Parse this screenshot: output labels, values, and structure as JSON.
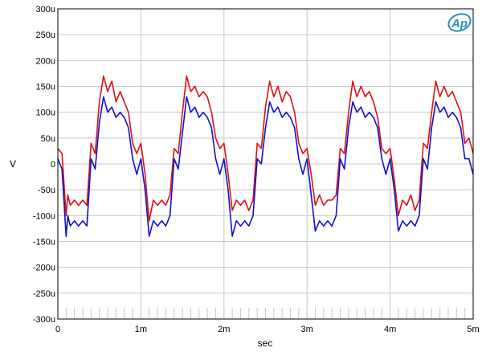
{
  "chart_data": {
    "type": "line",
    "title": "",
    "xlabel": "sec",
    "ylabel": "V",
    "x_unit": "seconds",
    "y_unit": "volts",
    "xlim": [
      0,
      0.005
    ],
    "ylim": [
      -0.0003,
      0.0003
    ],
    "grid": true,
    "x_ticks": [
      0,
      0.001,
      0.002,
      0.003,
      0.004,
      0.005
    ],
    "x_tick_labels": [
      "0",
      "1m",
      "2m",
      "3m",
      "4m",
      "5m"
    ],
    "y_ticks": [
      0.0003,
      0.00025,
      0.0002,
      0.00015,
      0.0001,
      5e-05,
      0,
      -5e-05,
      -0.0001,
      -0.00015,
      -0.0002,
      -0.00025,
      -0.0003
    ],
    "y_tick_labels": [
      "300u",
      "250u",
      "200u",
      "150u",
      "100u",
      "50u",
      "0",
      "-50u",
      "-100u",
      "-150u",
      "-200u",
      "-250u",
      "-300u"
    ],
    "series": [
      {
        "color": "#dd1111",
        "x": [
          0,
          5e-05,
          0.0001,
          0.00012,
          0.00015,
          0.0002,
          0.00025,
          0.0003,
          0.00035,
          0.0004,
          0.00045,
          0.0005,
          0.00055,
          0.0006,
          0.00065,
          0.0007,
          0.00075,
          0.0008,
          0.00085,
          0.0009,
          0.00095,
          0.001,
          0.00105,
          0.0011,
          0.00115,
          0.0012,
          0.00125,
          0.0013,
          0.00135,
          0.0014,
          0.00145,
          0.0015,
          0.00155,
          0.0016,
          0.00165,
          0.0017,
          0.00175,
          0.0018,
          0.00185,
          0.0019,
          0.00195,
          0.002,
          0.00205,
          0.0021,
          0.00215,
          0.0022,
          0.00225,
          0.0023,
          0.00235,
          0.0024,
          0.00245,
          0.0025,
          0.00255,
          0.0026,
          0.00265,
          0.0027,
          0.00275,
          0.0028,
          0.00285,
          0.0029,
          0.00295,
          0.003,
          0.00305,
          0.0031,
          0.00315,
          0.0032,
          0.00325,
          0.0033,
          0.00335,
          0.0034,
          0.00345,
          0.0035,
          0.00355,
          0.0036,
          0.00365,
          0.0037,
          0.00375,
          0.0038,
          0.00385,
          0.0039,
          0.00395,
          0.004,
          0.00405,
          0.0041,
          0.00415,
          0.0042,
          0.00425,
          0.0043,
          0.00435,
          0.0044,
          0.00445,
          0.0045,
          0.00455,
          0.0046,
          0.00465,
          0.0047,
          0.00475,
          0.0048,
          0.00485,
          0.0049,
          0.00495,
          0.005
        ],
        "y": [
          3e-05,
          2e-05,
          -0.0001,
          -6e-05,
          -8e-05,
          -7e-05,
          -8e-05,
          -7e-05,
          -8e-05,
          4e-05,
          2e-05,
          0.00012,
          0.00017,
          0.00014,
          0.00016,
          0.00012,
          0.00014,
          0.00012,
          0.0001,
          4e-05,
          2e-05,
          4e-05,
          -2e-05,
          -0.00011,
          -7e-05,
          -8e-05,
          -7e-05,
          -8e-05,
          -6e-05,
          3e-05,
          2e-05,
          0.0001,
          0.00017,
          0.00014,
          0.00015,
          0.00013,
          0.00014,
          0.00013,
          0.0001,
          5e-05,
          3e-05,
          4e-05,
          -2e-05,
          -9e-05,
          -7e-05,
          -8e-05,
          -7e-05,
          -9e-05,
          -7e-05,
          4e-05,
          3e-05,
          0.00011,
          0.00016,
          0.00013,
          0.00015,
          0.00012,
          0.00014,
          0.00013,
          0.0001,
          4e-05,
          2e-05,
          3e-05,
          -2e-05,
          -8e-05,
          -6e-05,
          -8e-05,
          -7e-05,
          -7e-05,
          -6e-05,
          3e-05,
          2e-05,
          0.0001,
          0.00016,
          0.00013,
          0.00015,
          0.00013,
          0.00014,
          0.00012,
          9e-05,
          3e-05,
          2e-05,
          3e-05,
          -3e-05,
          -0.0001,
          -7e-05,
          -8e-05,
          -6e-05,
          -9e-05,
          -7e-05,
          4e-05,
          3e-05,
          0.0001,
          0.00016,
          0.00013,
          0.00015,
          0.00013,
          0.00014,
          0.00012,
          0.0001,
          4e-05,
          5e-05,
          2e-05
        ]
      },
      {
        "color": "#1111cc",
        "x": [
          0,
          5e-05,
          0.0001,
          0.00012,
          0.00015,
          0.0002,
          0.00025,
          0.0003,
          0.00035,
          0.0004,
          0.00045,
          0.0005,
          0.00055,
          0.0006,
          0.00065,
          0.0007,
          0.00075,
          0.0008,
          0.00085,
          0.0009,
          0.00095,
          0.001,
          0.00105,
          0.0011,
          0.00115,
          0.0012,
          0.00125,
          0.0013,
          0.00135,
          0.0014,
          0.00145,
          0.0015,
          0.00155,
          0.0016,
          0.00165,
          0.0017,
          0.00175,
          0.0018,
          0.00185,
          0.0019,
          0.00195,
          0.002,
          0.00205,
          0.0021,
          0.00215,
          0.0022,
          0.00225,
          0.0023,
          0.00235,
          0.0024,
          0.00245,
          0.0025,
          0.00255,
          0.0026,
          0.00265,
          0.0027,
          0.00275,
          0.0028,
          0.00285,
          0.0029,
          0.00295,
          0.003,
          0.00305,
          0.0031,
          0.00315,
          0.0032,
          0.00325,
          0.0033,
          0.00335,
          0.0034,
          0.00345,
          0.0035,
          0.00355,
          0.0036,
          0.00365,
          0.0037,
          0.00375,
          0.0038,
          0.00385,
          0.0039,
          0.00395,
          0.004,
          0.00405,
          0.0041,
          0.00415,
          0.0042,
          0.00425,
          0.0043,
          0.00435,
          0.0044,
          0.00445,
          0.0045,
          0.00455,
          0.0046,
          0.00465,
          0.0047,
          0.00475,
          0.0048,
          0.00485,
          0.0049,
          0.00495,
          0.005
        ],
        "y": [
          1e-05,
          -1e-05,
          -0.00014,
          -0.0001,
          -0.00012,
          -0.00011,
          -0.00012,
          -0.00011,
          -0.00012,
          1e-05,
          -1e-05,
          8e-05,
          0.00013,
          0.0001,
          0.00011,
          9e-05,
          0.0001,
          9e-05,
          7e-05,
          1e-05,
          -2e-05,
          1e-05,
          -5e-05,
          -0.00014,
          -0.00011,
          -0.00012,
          -0.00011,
          -0.00012,
          -0.0001,
          1e-05,
          -1e-05,
          6e-05,
          0.00013,
          0.0001,
          0.00011,
          9e-05,
          0.0001,
          9e-05,
          7e-05,
          1e-05,
          -2e-05,
          1e-05,
          -5e-05,
          -0.00014,
          -0.00011,
          -0.00012,
          -0.00011,
          -0.00012,
          -0.0001,
          1e-05,
          0.0,
          7e-05,
          0.00012,
          0.0001,
          0.00011,
          9e-05,
          0.0001,
          9e-05,
          7e-05,
          1e-05,
          -2e-05,
          1e-05,
          -6e-05,
          -0.00013,
          -0.00011,
          -0.00012,
          -0.00011,
          -0.00012,
          -0.0001,
          1e-05,
          -1e-05,
          7e-05,
          0.00012,
          0.0001,
          0.00011,
          9e-05,
          0.0001,
          9e-05,
          7e-05,
          1e-05,
          -2e-05,
          1e-05,
          -5e-05,
          -0.00013,
          -0.00011,
          -0.00012,
          -0.00011,
          -0.00012,
          -0.0001,
          1e-05,
          -1e-05,
          7e-05,
          0.00012,
          0.0001,
          0.00011,
          9e-05,
          0.0001,
          9e-05,
          7e-05,
          1e-05,
          1e-05,
          -2e-05
        ]
      }
    ]
  },
  "logo": {
    "text": "Ap",
    "color": "#2a8fb5"
  }
}
